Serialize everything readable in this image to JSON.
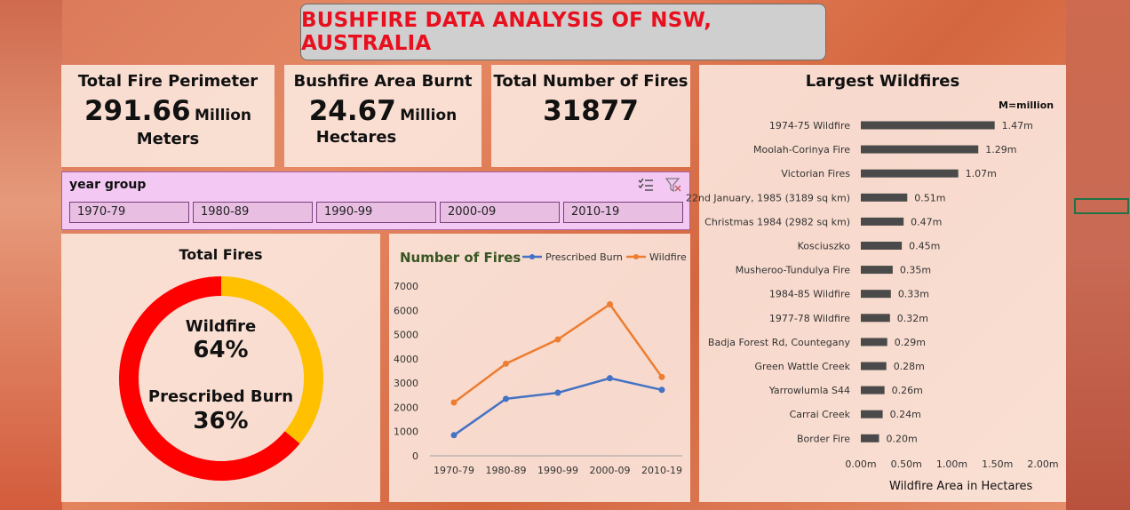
{
  "title": "BUSHFIRE DATA ANALYSIS OF NSW, AUSTRALIA",
  "kpis": {
    "perimeter": {
      "title": "Total Fire Perimeter",
      "value": "291.66",
      "unit": "Million",
      "unit2": "Meters"
    },
    "area": {
      "title": "Bushfire Area Burnt",
      "value": "24.67",
      "unit": "Million",
      "unit2": "Hectares"
    },
    "fires": {
      "title": "Total Number of Fires",
      "value": "31877"
    }
  },
  "slicer": {
    "header": "year group",
    "items": [
      "1970-79",
      "1980-89",
      "1990-99",
      "2000-09",
      "2010-19"
    ]
  },
  "colors": {
    "red": "#ff0000",
    "gold": "#ffc000",
    "blue": "#4472c4",
    "orange": "#ed7d31",
    "bar": "#4a4a4a",
    "green_title": "#375623"
  },
  "chart_data": [
    {
      "type": "pie",
      "title": "Total Fires",
      "labels": [
        "Wildfire",
        "Prescribed Burn"
      ],
      "values": [
        64,
        36
      ],
      "value_labels": [
        "64%",
        "36%"
      ]
    },
    {
      "type": "line",
      "title": "Number of Fires",
      "categories": [
        "1970-79",
        "1980-89",
        "1990-99",
        "2000-09",
        "2010-19"
      ],
      "series": [
        {
          "name": "Prescribed Burn",
          "values": [
            850,
            2350,
            2600,
            3200,
            2720
          ]
        },
        {
          "name": "Wildfire",
          "values": [
            2200,
            3800,
            4800,
            6250,
            3250
          ]
        }
      ],
      "ylim": [
        0,
        7000
      ],
      "yticks": [
        "0",
        "1000",
        "2000",
        "3000",
        "4000",
        "5000",
        "6000",
        "7000"
      ],
      "legend": "top-right"
    },
    {
      "type": "bar",
      "title": "Largest Wildfires",
      "note": "M=million",
      "xlabel": "Wildfire Area in Hectares",
      "categories": [
        "1974-75 Wildfire",
        "Moolah-Corinya Fire",
        "Victorian Fires",
        "22nd January, 1985 (3189 sq km)",
        "Christmas 1984 (2982 sq km)",
        "Kosciuszko",
        "Musheroo-Tundulya Fire",
        "1984-85 Wildfire",
        "1977-78 Wildfire",
        "Badja Forest Rd, Countegany",
        "Green Wattle Creek",
        "Yarrowlumla S44",
        "Carrai Creek",
        "Border Fire"
      ],
      "values": [
        1.47,
        1.29,
        1.07,
        0.51,
        0.47,
        0.45,
        0.35,
        0.33,
        0.32,
        0.29,
        0.28,
        0.26,
        0.24,
        0.2
      ],
      "value_labels": [
        "1.47m",
        "1.29m",
        "1.07m",
        "0.51m",
        "0.47m",
        "0.45m",
        "0.35m",
        "0.33m",
        "0.32m",
        "0.29m",
        "0.28m",
        "0.26m",
        "0.24m",
        "0.20m"
      ],
      "xlim": [
        0,
        2.0
      ],
      "xticks": [
        "0.00m",
        "0.50m",
        "1.00m",
        "1.50m",
        "2.00m"
      ]
    }
  ]
}
